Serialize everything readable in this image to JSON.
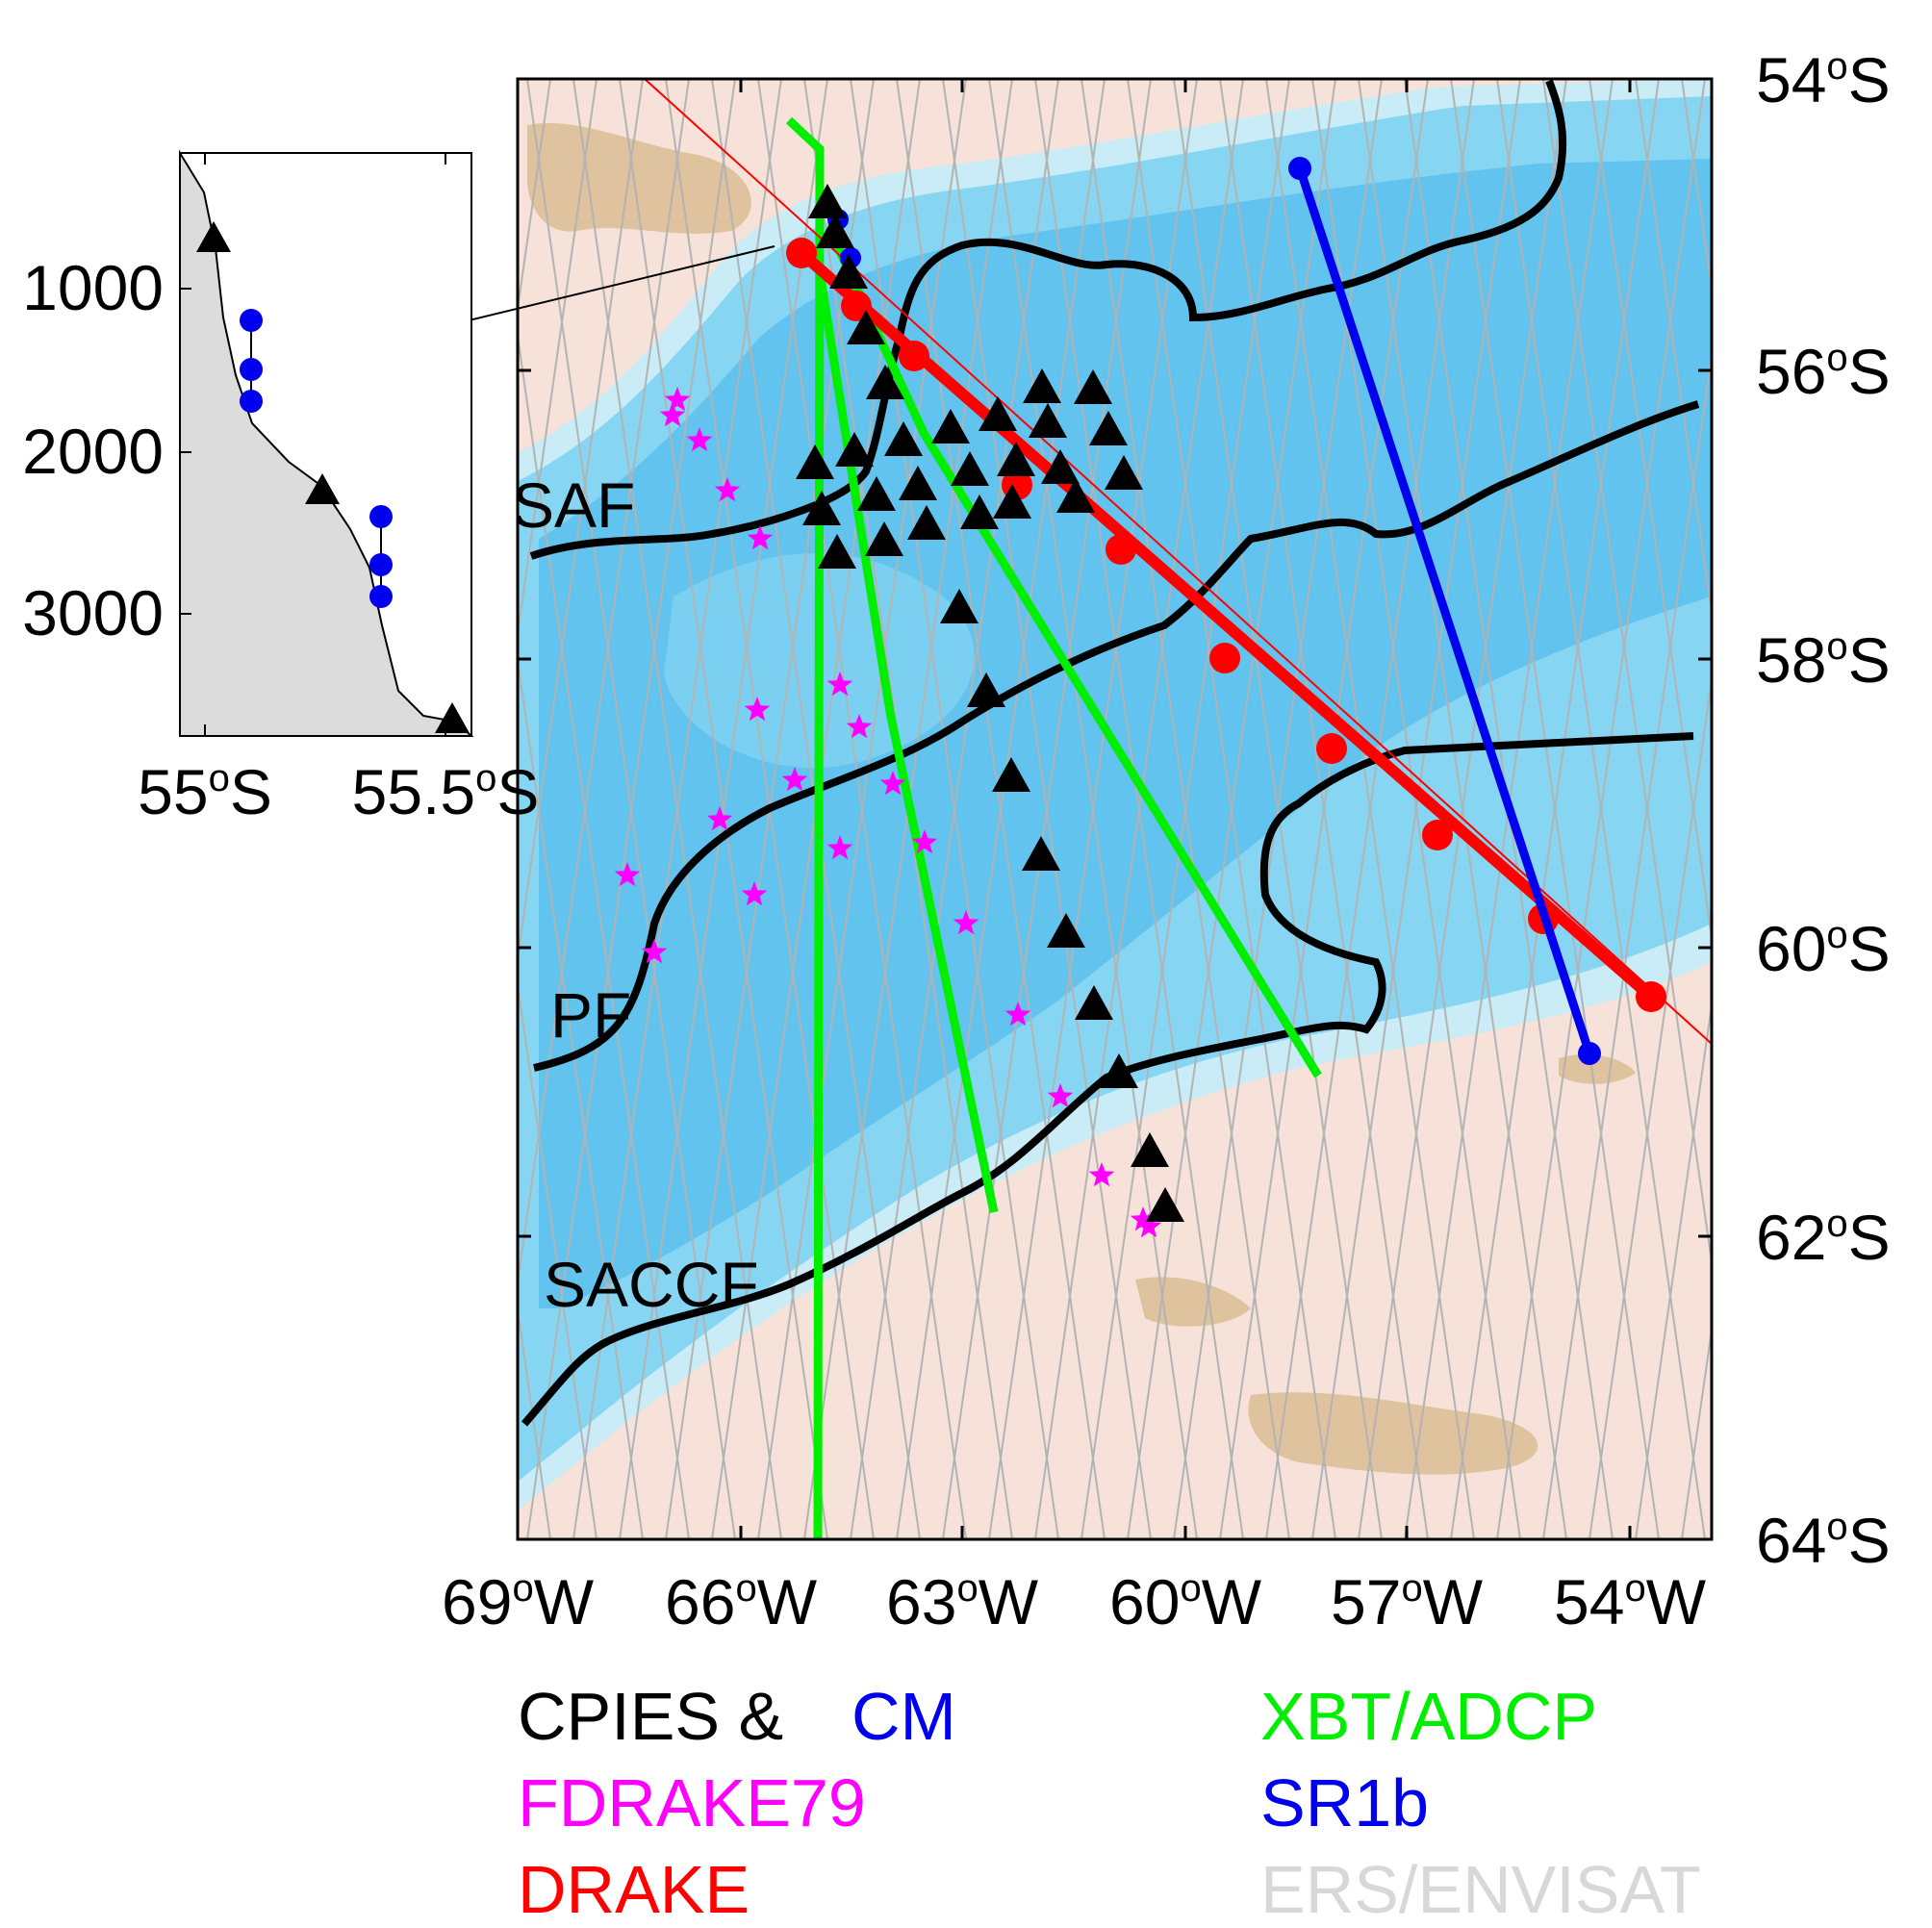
{
  "map": {
    "lat_ticks": [
      {
        "deg": "54",
        "deg_sym": "o",
        "hemi": "S"
      },
      {
        "deg": "56",
        "deg_sym": "o",
        "hemi": "S"
      },
      {
        "deg": "58",
        "deg_sym": "o",
        "hemi": "S"
      },
      {
        "deg": "60",
        "deg_sym": "o",
        "hemi": "S"
      },
      {
        "deg": "62",
        "deg_sym": "o",
        "hemi": "S"
      },
      {
        "deg": "64",
        "deg_sym": "o",
        "hemi": "S"
      }
    ],
    "lon_ticks": [
      {
        "deg": "69",
        "deg_sym": "o",
        "hemi": "W"
      },
      {
        "deg": "66",
        "deg_sym": "o",
        "hemi": "W"
      },
      {
        "deg": "63",
        "deg_sym": "o",
        "hemi": "W"
      },
      {
        "deg": "60",
        "deg_sym": "o",
        "hemi": "W"
      },
      {
        "deg": "57",
        "deg_sym": "o",
        "hemi": "W"
      },
      {
        "deg": "54",
        "deg_sym": "o",
        "hemi": "W"
      }
    ],
    "fronts": [
      "SAF",
      "PF",
      "SACCF"
    ]
  },
  "inset": {
    "depth_ticks": [
      "1000",
      "2000",
      "3000"
    ],
    "lat_ticks": [
      {
        "deg": "55",
        "deg_sym": "o",
        "hemi": "S"
      },
      {
        "deg": "55.5",
        "deg_sym": "o",
        "hemi": "S"
      }
    ]
  },
  "legend": {
    "cpies": "CPIES &",
    "cm": "CM",
    "fdrake": "FDRAKE79",
    "drake": "DRAKE",
    "xbt": "XBT/ADCP",
    "sr1b": "SR1b",
    "ers": "ERS/ENVISAT"
  },
  "colors": {
    "cpies": "#000000",
    "cm": "#0000ee",
    "fdrake": "#ff00ff",
    "drake": "#ff0000",
    "xbt": "#00ee00",
    "sr1b": "#0000ee",
    "ers": "#d8d8d8",
    "land_pink": "#f6e2d8",
    "shallow_tan": "#dfc29e",
    "ocean_light": "#c9ecf6",
    "ocean_mid": "#86d6f3",
    "ocean_deep": "#5cc0ec"
  }
}
